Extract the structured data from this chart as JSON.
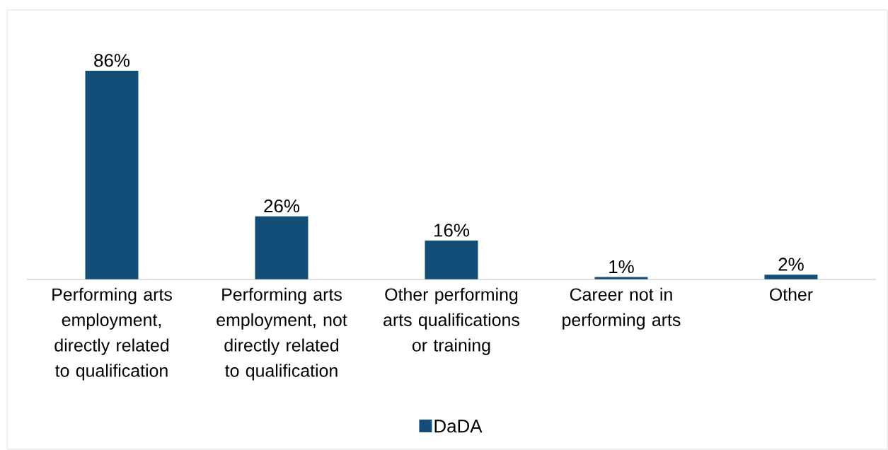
{
  "chart_data": {
    "type": "bar",
    "categories": [
      "Performing arts employment, directly related to qualification",
      "Performing arts employment, not directly related to qualification",
      "Other performing arts qualifications or training",
      "Career not in performing arts",
      "Other"
    ],
    "series": [
      {
        "name": "DaDA",
        "color": "#124e78",
        "values": [
          86,
          26,
          16,
          1,
          2
        ],
        "value_labels": [
          "86%",
          "26%",
          "16%",
          "1%",
          "2%"
        ]
      }
    ],
    "tick_labels": "x",
    "grid": false,
    "legend": "bottom"
  }
}
